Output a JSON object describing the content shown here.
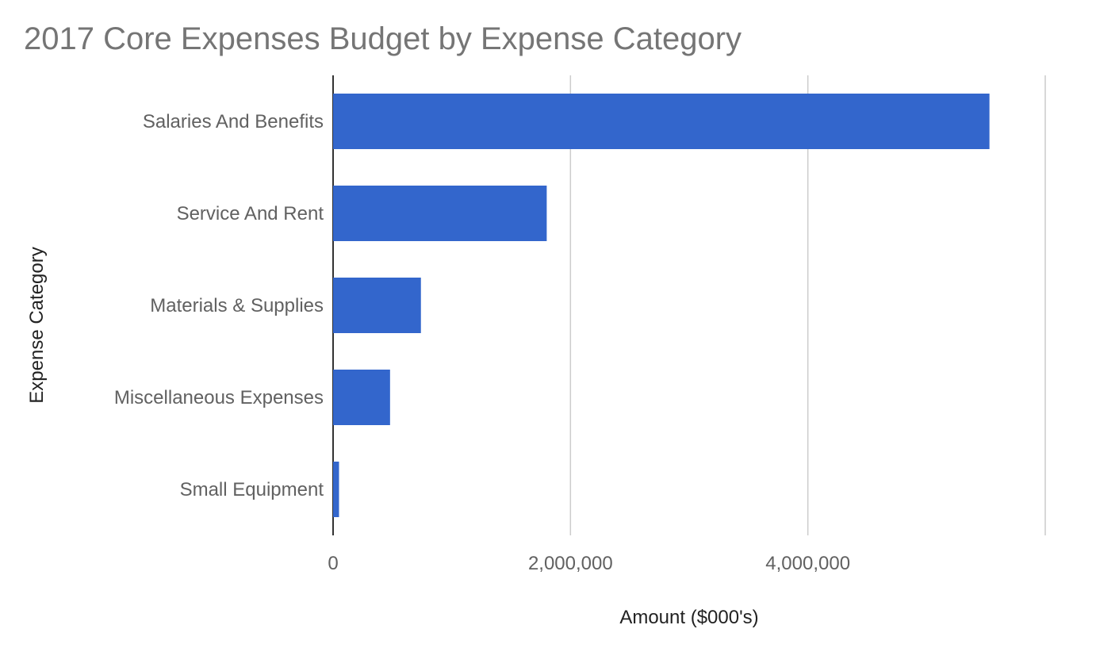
{
  "colors": {
    "bar": "#3366cc",
    "gridline": "#cccccc",
    "baseline": "#333333",
    "title": "#757575",
    "label": "#616161",
    "axis_title": "#222222"
  },
  "chart_data": {
    "type": "bar",
    "orientation": "horizontal",
    "title": "2017 Core Expenses Budget by Expense Category",
    "xlabel": "Amount ($000's)",
    "ylabel": "Expense Category",
    "categories": [
      "Salaries And Benefits",
      "Service And Rent",
      "Materials & Supplies",
      "Miscellaneous Expenses",
      "Small Equipment"
    ],
    "values": [
      5530000,
      1800000,
      740000,
      480000,
      50000
    ],
    "xlim": [
      0,
      6000000
    ],
    "x_ticks": [
      0,
      2000000,
      4000000
    ],
    "x_tick_labels": [
      "0",
      "2,000,000",
      "4,000,000"
    ],
    "grid": true,
    "legend": "none"
  }
}
